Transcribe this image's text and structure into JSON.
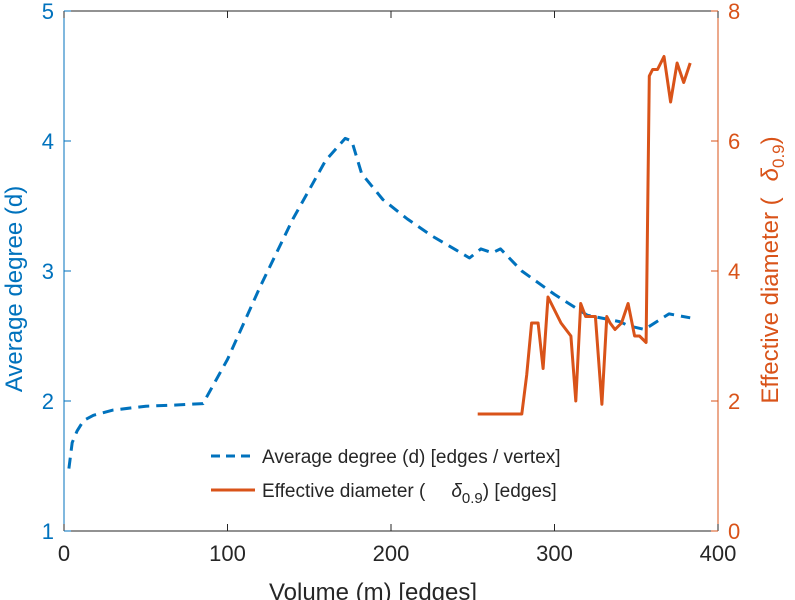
{
  "chart_data": {
    "type": "line",
    "xlabel": "Volume (m) [edges]",
    "ylabel_left": "Average degree (d)",
    "ylabel_right": "Effective diameter ( δ0.9)",
    "ylabel_right_main": "Effective diameter (",
    "ylabel_right_symbol": "δ",
    "ylabel_right_subscript": "0.9",
    "ylabel_right_close": ")",
    "xlim": [
      0,
      400
    ],
    "ylim_left": [
      1,
      5
    ],
    "ylim_right": [
      0,
      8
    ],
    "x_ticks": [
      "0",
      "100",
      "200",
      "300",
      "400"
    ],
    "y_left_ticks": [
      "1",
      "2",
      "3",
      "4",
      "5"
    ],
    "y_right_ticks": [
      "0",
      "2",
      "4",
      "6",
      "8"
    ],
    "colors": {
      "left": "#0072BD",
      "right": "#D95319",
      "axis": "#262626"
    },
    "legend": {
      "position": "bottom-center",
      "entries": [
        {
          "text": "Average degree (d) [edges / vertex]",
          "style": "dashed",
          "color": "#0072BD"
        },
        {
          "text_before": "Effective diameter (",
          "symbol": "δ",
          "subscript": "0.9",
          "text_after": ") [edges]",
          "style": "solid",
          "color": "#D95319"
        }
      ]
    },
    "series": [
      {
        "name": "Average degree (d) [edges / vertex]",
        "axis": "left",
        "style": "dashed",
        "color": "#0072BD",
        "x": [
          3,
          5,
          8,
          12,
          18,
          30,
          50,
          70,
          85,
          100,
          120,
          140,
          160,
          172,
          176,
          182,
          195,
          210,
          225,
          240,
          248,
          255,
          262,
          267,
          280,
          300,
          320,
          340,
          345,
          355,
          370,
          383
        ],
        "y": [
          1.48,
          1.68,
          1.77,
          1.85,
          1.89,
          1.93,
          1.96,
          1.97,
          1.98,
          2.32,
          2.88,
          3.4,
          3.85,
          4.02,
          4.0,
          3.75,
          3.55,
          3.4,
          3.27,
          3.16,
          3.1,
          3.17,
          3.14,
          3.17,
          3.0,
          2.82,
          2.66,
          2.61,
          2.58,
          2.55,
          2.67,
          2.64
        ]
      },
      {
        "name": "Effective diameter (δ0.9) [edges]",
        "axis": "right",
        "style": "solid",
        "color": "#D95319",
        "x": [
          253,
          273,
          280,
          283,
          286,
          290,
          293,
          296,
          300,
          304,
          310,
          313,
          316,
          319,
          322,
          325,
          329,
          332,
          334,
          337,
          341,
          345,
          349,
          352,
          356,
          358,
          360,
          363,
          367,
          371,
          375,
          379,
          383
        ],
        "y": [
          1.8,
          1.8,
          1.8,
          2.4,
          3.2,
          3.2,
          2.5,
          3.6,
          3.4,
          3.2,
          3.0,
          2.0,
          3.5,
          3.3,
          3.3,
          3.3,
          1.95,
          3.3,
          3.2,
          3.1,
          3.2,
          3.5,
          3.0,
          3.0,
          2.9,
          7.0,
          7.1,
          7.1,
          7.3,
          6.6,
          7.2,
          6.9,
          7.2
        ]
      }
    ]
  }
}
